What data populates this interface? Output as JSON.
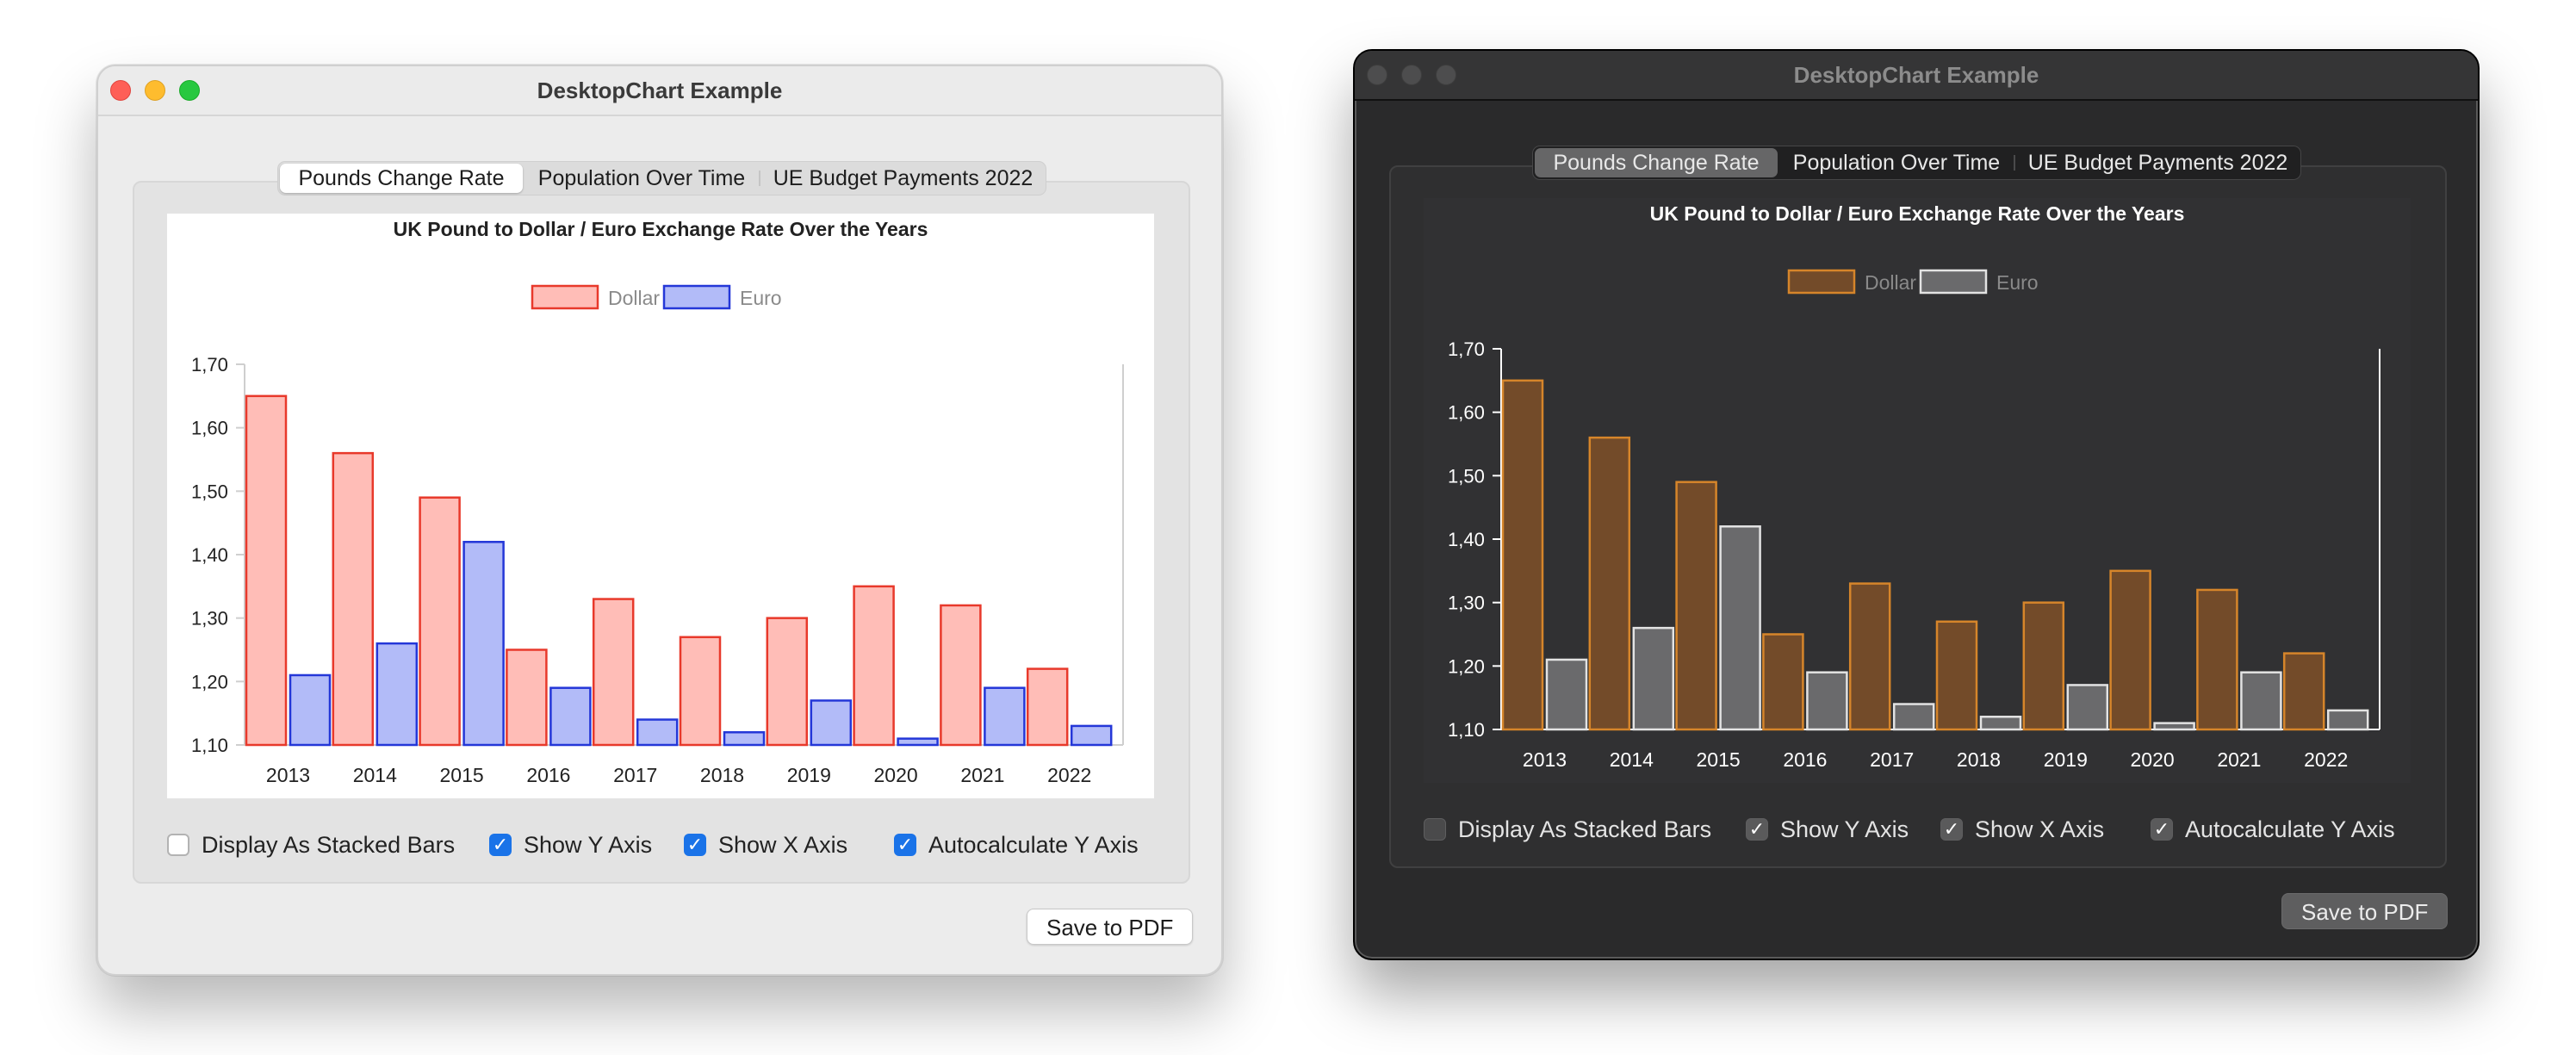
{
  "window": {
    "title": "DesktopChart Example"
  },
  "tabs": [
    {
      "label": "Pounds Change Rate",
      "selected": true
    },
    {
      "label": "Population Over Time",
      "selected": false
    },
    {
      "label": "UE Budget Payments 2022",
      "selected": false
    }
  ],
  "options": [
    {
      "label": "Display As Stacked Bars",
      "checked": false
    },
    {
      "label": "Show Y Axis",
      "checked": true
    },
    {
      "label": "Show X Axis",
      "checked": true
    },
    {
      "label": "Autocalculate Y Axis",
      "checked": true
    }
  ],
  "checkmark": "✓",
  "save_button": "Save to PDF",
  "themes": {
    "light": {
      "dollar_fill": "#ffbdb7",
      "dollar_stroke": "#e8392b",
      "euro_fill": "#b2bbf8",
      "euro_stroke": "#2437d8",
      "text": "#222222",
      "axis": "#cfcfcf"
    },
    "dark": {
      "dollar_fill": "#734b29",
      "dollar_stroke": "#d6852a",
      "euro_fill": "#6a6a6c",
      "euro_stroke": "#e3e3e3",
      "text": "#ffffff",
      "axis": "#ffffff"
    }
  },
  "chart_data": {
    "type": "bar",
    "title": "UK Pound to Dollar / Euro Exchange Rate Over the Years",
    "categories": [
      "2013",
      "2014",
      "2015",
      "2016",
      "2017",
      "2018",
      "2019",
      "2020",
      "2021",
      "2022"
    ],
    "series": [
      {
        "name": "Dollar",
        "values": [
          1.65,
          1.56,
          1.49,
          1.25,
          1.33,
          1.27,
          1.3,
          1.35,
          1.32,
          1.22
        ]
      },
      {
        "name": "Euro",
        "values": [
          1.21,
          1.26,
          1.42,
          1.19,
          1.14,
          1.12,
          1.17,
          1.11,
          1.19,
          1.13
        ]
      }
    ],
    "ylim": [
      1.1,
      1.7
    ],
    "yticks": [
      "1,10",
      "1,20",
      "1,30",
      "1,40",
      "1,50",
      "1,60",
      "1,70"
    ],
    "legend": "top-center",
    "grid": false
  }
}
